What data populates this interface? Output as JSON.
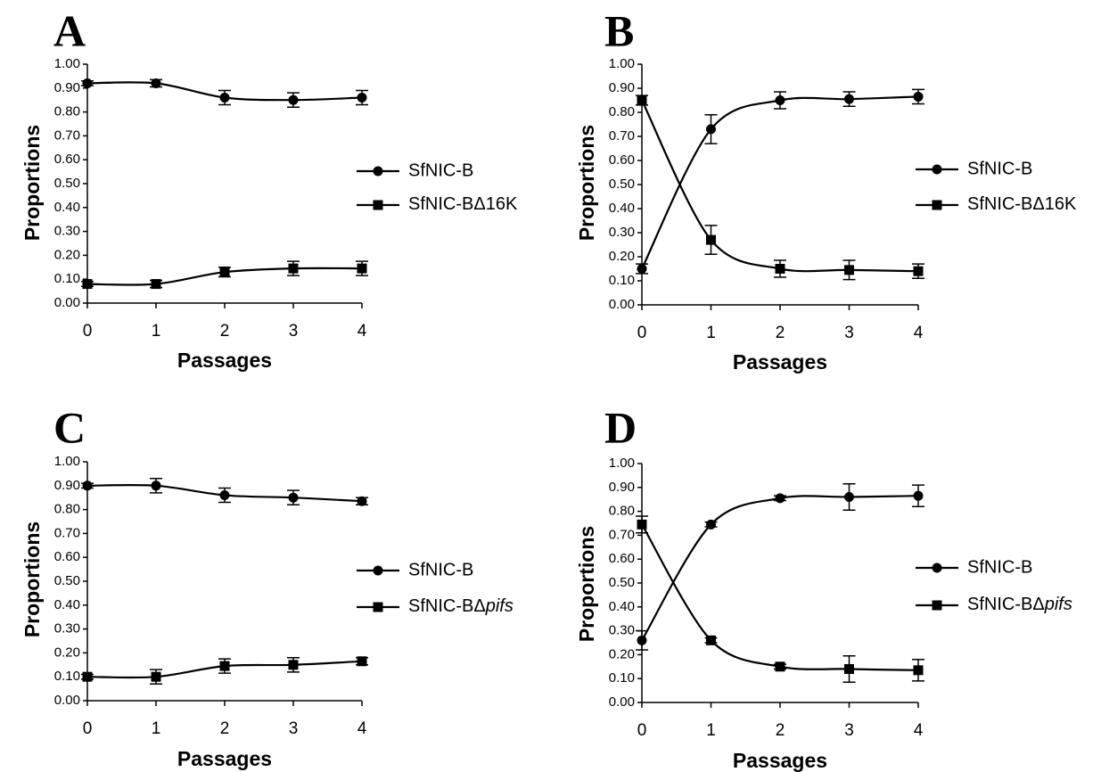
{
  "chart_data": [
    {
      "panel": "A",
      "type": "line",
      "xlabel": "Passages",
      "ylabel": "Proportions",
      "x": [
        0,
        1,
        2,
        3,
        4
      ],
      "xticks": [
        "0",
        "1",
        "2",
        "3",
        "4"
      ],
      "ylim": [
        0,
        1
      ],
      "yticks": [
        "0.00",
        "0.10",
        "0.20",
        "0.30",
        "0.40",
        "0.50",
        "0.60",
        "0.70",
        "0.80",
        "0.90",
        "1.00"
      ],
      "legend_position": "right",
      "series": [
        {
          "name": "SfNIC-B",
          "marker": "circle",
          "values": [
            0.92,
            0.92,
            0.86,
            0.85,
            0.86
          ],
          "errors": [
            0.01,
            0.015,
            0.03,
            0.03,
            0.03
          ]
        },
        {
          "name": "SfNIC-BΔ16K",
          "name_prefix": "SfNIC-BΔ",
          "name_suffix": "16K",
          "suffix_italic": false,
          "marker": "square",
          "values": [
            0.08,
            0.08,
            0.13,
            0.145,
            0.145
          ],
          "errors": [
            0.01,
            0.015,
            0.02,
            0.03,
            0.03
          ]
        }
      ]
    },
    {
      "panel": "B",
      "type": "line",
      "xlabel": "Passages",
      "ylabel": "Proportions",
      "x": [
        0,
        1,
        2,
        3,
        4
      ],
      "xticks": [
        "0",
        "1",
        "2",
        "3",
        "4"
      ],
      "ylim": [
        0,
        1
      ],
      "yticks": [
        "0.00",
        "0.10",
        "0.20",
        "0.30",
        "0.40",
        "0.50",
        "0.60",
        "0.70",
        "0.80",
        "0.90",
        "1.00"
      ],
      "legend_position": "right",
      "series": [
        {
          "name": "SfNIC-B",
          "marker": "circle",
          "values": [
            0.15,
            0.73,
            0.85,
            0.855,
            0.865
          ],
          "errors": [
            0.02,
            0.06,
            0.035,
            0.03,
            0.03
          ]
        },
        {
          "name": "SfNIC-BΔ16K",
          "name_prefix": "SfNIC-BΔ",
          "name_suffix": "16K",
          "suffix_italic": false,
          "marker": "square",
          "values": [
            0.85,
            0.27,
            0.15,
            0.145,
            0.14
          ],
          "errors": [
            0.02,
            0.06,
            0.035,
            0.04,
            0.03
          ]
        }
      ]
    },
    {
      "panel": "C",
      "type": "line",
      "xlabel": "Passages",
      "ylabel": "Proportions",
      "x": [
        0,
        1,
        2,
        3,
        4
      ],
      "xticks": [
        "0",
        "1",
        "2",
        "3",
        "4"
      ],
      "ylim": [
        0,
        1
      ],
      "yticks": [
        "0.00",
        "0.10",
        "0.20",
        "0.30",
        "0.40",
        "0.50",
        "0.60",
        "0.70",
        "0.80",
        "0.90",
        "1.00"
      ],
      "legend_position": "right",
      "series": [
        {
          "name": "SfNIC-B",
          "marker": "circle",
          "values": [
            0.9,
            0.9,
            0.86,
            0.85,
            0.835
          ],
          "errors": [
            0.01,
            0.03,
            0.03,
            0.03,
            0.015
          ]
        },
        {
          "name": "SfNIC-BΔpifs",
          "name_prefix": "SfNIC-BΔ",
          "name_suffix": "pifs",
          "suffix_italic": true,
          "marker": "square",
          "values": [
            0.1,
            0.1,
            0.145,
            0.15,
            0.165
          ],
          "errors": [
            0.01,
            0.03,
            0.03,
            0.03,
            0.015
          ]
        }
      ]
    },
    {
      "panel": "D",
      "type": "line",
      "xlabel": "Passages",
      "ylabel": "Proportions",
      "x": [
        0,
        1,
        2,
        3,
        4
      ],
      "xticks": [
        "0",
        "1",
        "2",
        "3",
        "4"
      ],
      "ylim": [
        0,
        1
      ],
      "yticks": [
        "0.00",
        "0.10",
        "0.20",
        "0.30",
        "0.40",
        "0.50",
        "0.60",
        "0.70",
        "0.80",
        "0.90",
        "1.00"
      ],
      "legend_position": "right",
      "series": [
        {
          "name": "SfNIC-B",
          "marker": "circle",
          "values": [
            0.26,
            0.745,
            0.855,
            0.86,
            0.865
          ],
          "errors": [
            0.04,
            0.01,
            0.01,
            0.055,
            0.045
          ]
        },
        {
          "name": "SfNIC-BΔpifs",
          "name_prefix": "SfNIC-BΔ",
          "name_suffix": "pifs",
          "suffix_italic": true,
          "marker": "square",
          "values": [
            0.745,
            0.26,
            0.15,
            0.14,
            0.135
          ],
          "errors": [
            0.035,
            0.01,
            0.01,
            0.055,
            0.045
          ]
        }
      ]
    }
  ]
}
